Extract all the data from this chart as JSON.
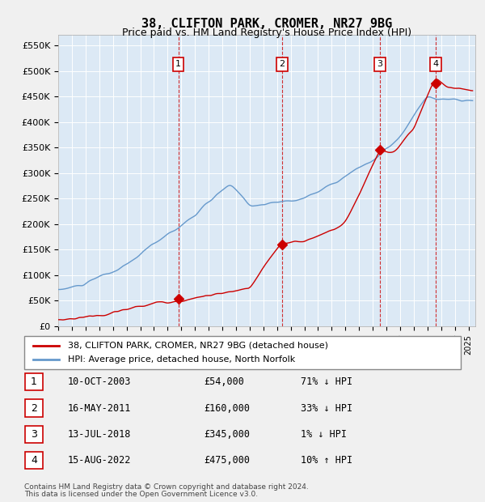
{
  "title": "38, CLIFTON PARK, CROMER, NR27 9BG",
  "subtitle": "Price paid vs. HM Land Registry's House Price Index (HPI)",
  "legend_label_red": "38, CLIFTON PARK, CROMER, NR27 9BG (detached house)",
  "legend_label_blue": "HPI: Average price, detached house, North Norfolk",
  "footer_line1": "Contains HM Land Registry data © Crown copyright and database right 2024.",
  "footer_line2": "This data is licensed under the Open Government Licence v3.0.",
  "sales": [
    {
      "num": 1,
      "date_str": "10-OCT-2003",
      "date_x": 2003.78,
      "price": 54000,
      "label": "71% ↓ HPI"
    },
    {
      "num": 2,
      "date_str": "16-MAY-2011",
      "date_x": 2011.37,
      "price": 160000,
      "label": "33% ↓ HPI"
    },
    {
      "num": 3,
      "date_str": "13-JUL-2018",
      "date_x": 2018.53,
      "price": 345000,
      "label": "1% ↓ HPI"
    },
    {
      "num": 4,
      "date_str": "15-AUG-2022",
      "date_x": 2022.62,
      "price": 475000,
      "label": "10% ↑ HPI"
    }
  ],
  "ylim": [
    0,
    570000
  ],
  "xlim": [
    1995.0,
    2025.5
  ],
  "background_color": "#dce9f5",
  "plot_bg_color": "#dce9f5",
  "red_color": "#cc0000",
  "blue_color": "#6699cc",
  "grid_color": "#ffffff",
  "table_rows": [
    [
      "1",
      "10-OCT-2003",
      "£54,000",
      "71% ↓ HPI"
    ],
    [
      "2",
      "16-MAY-2011",
      "£160,000",
      "33% ↓ HPI"
    ],
    [
      "3",
      "13-JUL-2018",
      "£345,000",
      "1% ↓ HPI"
    ],
    [
      "4",
      "15-AUG-2022",
      "£475,000",
      "10% ↑ HPI"
    ]
  ]
}
